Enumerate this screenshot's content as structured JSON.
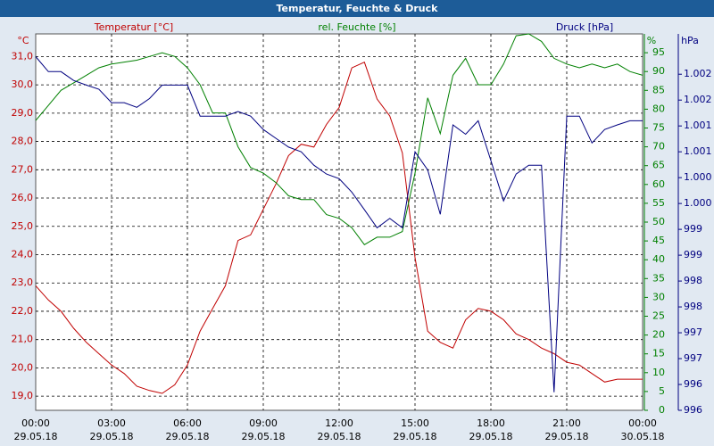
{
  "chart_data": {
    "type": "line",
    "title": "Temperatur, Feuchte & Druck",
    "ylabel": "Temperatur [°C]",
    "yunit": "°C",
    "y2label": "rel. Feuchte [%]",
    "y2unit": "%",
    "y3label": "Druck [hPa]",
    "y3unit": "hPa",
    "grid": true,
    "x": [
      0,
      0.5,
      1,
      1.5,
      2,
      2.5,
      3,
      3.5,
      4,
      4.5,
      5,
      5.5,
      6,
      6.5,
      7,
      7.5,
      8,
      8.5,
      9,
      9.5,
      10,
      10.5,
      11,
      11.5,
      12,
      12.5,
      13,
      13.5,
      14,
      14.5,
      15,
      15.5,
      16,
      16.5,
      17,
      17.5,
      18,
      18.5,
      19,
      19.5,
      20,
      20.5,
      21,
      21.5,
      22,
      22.5,
      23,
      23.5,
      24
    ],
    "xlim": [
      0,
      24
    ],
    "xticks": [
      {
        "value": 0,
        "label": "00:00"
      },
      {
        "value": 3,
        "label": "03:00"
      },
      {
        "value": 6,
        "label": "06:00"
      },
      {
        "value": 9,
        "label": "09:00"
      },
      {
        "value": 12,
        "label": "12:00"
      },
      {
        "value": 15,
        "label": "15:00"
      },
      {
        "value": 18,
        "label": "18:00"
      },
      {
        "value": 21,
        "label": "21:00"
      },
      {
        "value": 24,
        "label": "00:00"
      }
    ],
    "xtick_dates": [
      "29.05.18",
      "29.05.18",
      "29.05.18",
      "29.05.18",
      "29.05.18",
      "29.05.18",
      "29.05.18",
      "29.05.18",
      "30.05.18"
    ],
    "ylim": [
      18.5,
      31.8
    ],
    "yticks": [
      {
        "value": 19,
        "label": "19,0"
      },
      {
        "value": 20,
        "label": "20,0"
      },
      {
        "value": 21,
        "label": "21,0"
      },
      {
        "value": 22,
        "label": "22,0"
      },
      {
        "value": 23,
        "label": "23,0"
      },
      {
        "value": 24,
        "label": "24,0"
      },
      {
        "value": 25,
        "label": "25,0"
      },
      {
        "value": 26,
        "label": "26,0"
      },
      {
        "value": 27,
        "label": "27,0"
      },
      {
        "value": 28,
        "label": "28,0"
      },
      {
        "value": 29,
        "label": "29,0"
      },
      {
        "value": 30,
        "label": "30,0"
      },
      {
        "value": 31,
        "label": "31,0"
      }
    ],
    "y2lim": [
      0,
      100
    ],
    "y2ticks": [
      0,
      5,
      10,
      15,
      20,
      25,
      30,
      35,
      40,
      45,
      50,
      55,
      60,
      65,
      70,
      75,
      80,
      85,
      90,
      95
    ],
    "y3lim": [
      995.75,
      1003.03
    ],
    "y3ticks": [
      {
        "value": 995.75,
        "label": "996"
      },
      {
        "value": 996.25,
        "label": "996"
      },
      {
        "value": 996.75,
        "label": "997"
      },
      {
        "value": 997.25,
        "label": "997"
      },
      {
        "value": 997.75,
        "label": "998"
      },
      {
        "value": 998.25,
        "label": "998"
      },
      {
        "value": 998.75,
        "label": "999"
      },
      {
        "value": 999.25,
        "label": "999"
      },
      {
        "value": 999.75,
        "label": "1.000"
      },
      {
        "value": 1000.25,
        "label": "1.000"
      },
      {
        "value": 1000.75,
        "label": "1.001"
      },
      {
        "value": 1001.25,
        "label": "1.001"
      },
      {
        "value": 1001.75,
        "label": "1.002"
      },
      {
        "value": 1002.25,
        "label": "1.002"
      }
    ],
    "series": [
      {
        "name": "Temperatur",
        "color": "#c00000",
        "axis": "y",
        "values": [
          22.9,
          22.4,
          22.0,
          21.4,
          20.9,
          20.5,
          20.1,
          19.8,
          19.35,
          19.2,
          19.1,
          19.4,
          20.1,
          21.3,
          22.1,
          22.9,
          24.5,
          24.7,
          25.6,
          26.5,
          27.5,
          27.9,
          27.8,
          28.6,
          29.2,
          30.6,
          30.8,
          29.5,
          28.9,
          27.6,
          23.9,
          21.3,
          20.9,
          20.7,
          21.7,
          22.1,
          22.0,
          21.7,
          21.2,
          21.0,
          20.7,
          20.5,
          20.2,
          20.1,
          19.8,
          19.5,
          19.6,
          19.6,
          19.6
        ]
      },
      {
        "name": "rel. Feuchte",
        "color": "#008000",
        "axis": "y2",
        "values": [
          77,
          81,
          85,
          87,
          89,
          91,
          92,
          92.5,
          93,
          94,
          95,
          94,
          91,
          86.5,
          79,
          79,
          70,
          64.5,
          63,
          60.5,
          57,
          56,
          56,
          52,
          51,
          48.5,
          44,
          46,
          46,
          47.5,
          63,
          83,
          73.5,
          89,
          93.5,
          86.5,
          86.5,
          92,
          99.5,
          100,
          98,
          93.5,
          92,
          91,
          92,
          91,
          92,
          90,
          89
        ]
      },
      {
        "name": "Druck",
        "color": "#000080",
        "axis": "y3",
        "values": [
          1002.59,
          1002.3,
          1002.3,
          1002.13,
          1002.04,
          1001.96,
          1001.7,
          1001.7,
          1001.61,
          1001.78,
          1002.04,
          1002.04,
          1002.04,
          1001.44,
          1001.44,
          1001.44,
          1001.53,
          1001.44,
          1001.18,
          1001.01,
          1000.84,
          1000.75,
          1000.49,
          1000.32,
          1000.23,
          999.97,
          999.63,
          999.28,
          999.46,
          999.28,
          1000.75,
          1000.4,
          999.54,
          1001.27,
          1001.09,
          1001.35,
          1000.58,
          999.8,
          1000.32,
          1000.49,
          1000.49,
          996.1,
          1001.44,
          1001.44,
          1000.92,
          1001.18,
          1001.27,
          1001.35,
          1001.35
        ]
      }
    ]
  }
}
